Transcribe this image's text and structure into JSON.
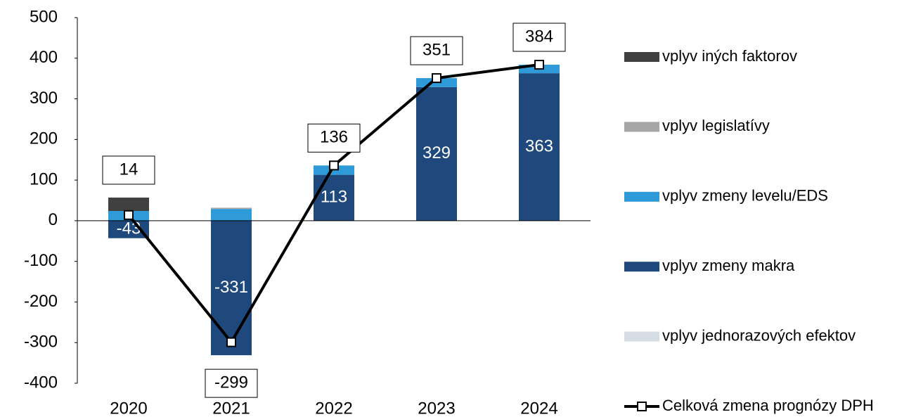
{
  "chart_data": {
    "type": "bar",
    "stacked": true,
    "categories": [
      "2020",
      "2021",
      "2022",
      "2023",
      "2024"
    ],
    "series": [
      {
        "name": "vplyv jednorazových efektov",
        "color": "#d6dce4",
        "values": [
          0,
          0,
          0,
          0,
          0
        ]
      },
      {
        "name": "vplyv zmeny makra",
        "color": "#1f497d",
        "values": [
          -43,
          -331,
          113,
          329,
          363
        ]
      },
      {
        "name": "vplyv zmeny levelu/EDS",
        "color": "#2e9ad8",
        "values": [
          24,
          29,
          23,
          22,
          21
        ]
      },
      {
        "name": "vplyv legislatívy",
        "color": "#a6a6a6",
        "values": [
          0,
          3,
          0,
          0,
          0
        ]
      },
      {
        "name": "vplyv iných faktorov",
        "color": "#404040",
        "values": [
          33,
          0,
          0,
          0,
          0
        ]
      },
      {
        "name": "Celková zmena prognózy DPH",
        "type": "line",
        "color": "#000000",
        "values": [
          14,
          -299,
          136,
          351,
          384
        ]
      }
    ],
    "labeled_series": [
      1,
      5
    ],
    "legend_order": [
      4,
      3,
      2,
      1,
      0,
      5
    ],
    "ylim": [
      -400,
      500
    ],
    "yticks": [
      -400,
      -300,
      -200,
      -100,
      0,
      100,
      200,
      300,
      400,
      500
    ],
    "grid": false
  }
}
